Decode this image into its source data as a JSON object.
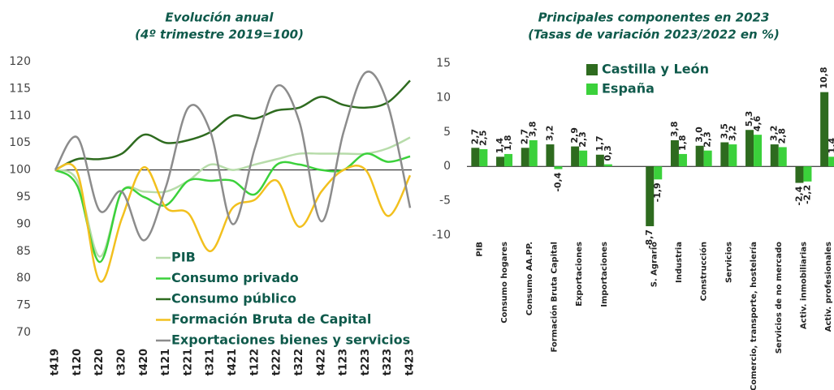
{
  "chart_data": [
    {
      "type": "line",
      "title": "Evolución anual",
      "subtitle": "(4º trimestre 2019=100)",
      "categories": [
        "t419",
        "t120",
        "t220",
        "t320",
        "t420",
        "t121",
        "t221",
        "t321",
        "t421",
        "t122",
        "t222",
        "t322",
        "t422",
        "t123",
        "t223",
        "t323",
        "t423"
      ],
      "series": [
        {
          "name": "PIB",
          "color": "#b7dcaa",
          "values": [
            100,
            98,
            84,
            96,
            96,
            96,
            98,
            101,
            100,
            101,
            102,
            103,
            103,
            103,
            103,
            104,
            106
          ]
        },
        {
          "name": "Consumo privado",
          "color": "#3bd13b",
          "values": [
            100,
            97,
            83,
            96,
            95,
            93.5,
            98,
            98,
            98,
            95.5,
            101,
            101,
            100,
            100,
            103,
            101.5,
            102.5
          ]
        },
        {
          "name": "Consumo público",
          "color": "#2e6b1f",
          "values": [
            100,
            102,
            102,
            103,
            106.5,
            105,
            105.5,
            107,
            110,
            109.5,
            111,
            111.5,
            113.5,
            112,
            111.5,
            112.5,
            116.5
          ]
        },
        {
          "name": "Formación Bruta de Capital",
          "color": "#f2c01e",
          "values": [
            100,
            99.5,
            79.5,
            91,
            100.5,
            93,
            92,
            85,
            93,
            94.5,
            98,
            89.5,
            96,
            100,
            100,
            91.5,
            99
          ]
        },
        {
          "name": "Exportaciones bienes y servicios",
          "color": "#8c8c8c",
          "values": [
            100,
            106,
            92.5,
            96,
            87,
            97,
            111.5,
            107,
            90,
            104,
            115.5,
            109,
            90.5,
            107,
            118,
            112,
            93
          ]
        }
      ],
      "ylim": [
        70,
        120
      ],
      "yticks": [
        70,
        75,
        80,
        85,
        90,
        95,
        100,
        105,
        110,
        115,
        120
      ],
      "baseline": 100,
      "legend": "bottom"
    },
    {
      "type": "bar",
      "title": "Principales componentes en 2023",
      "subtitle": "(Tasas de variación 2023/2022 en %)",
      "categories": [
        "PIB",
        "Consumo hogares",
        "Consumo AA.PP.",
        "Formación Bruta Capital",
        "Exportaciones",
        "Importaciones",
        null,
        "S. Agrario",
        "Industria",
        "Construcción",
        "Servicios",
        "Comercio, transporte, hostelería",
        "Servicios de no mercado",
        "Activ. inmobiliarias",
        "Activ. profesionales"
      ],
      "series": [
        {
          "name": "Castilla y León",
          "color": "#2e6b1f",
          "values": [
            2.7,
            1.4,
            2.7,
            3.2,
            2.9,
            1.7,
            null,
            -8.7,
            3.8,
            3.0,
            3.5,
            5.3,
            3.2,
            -2.4,
            10.8
          ],
          "value_labels": [
            "2,7",
            "1,4",
            "2,7",
            "3,2",
            "2,9",
            "1,7",
            null,
            "-8,7",
            "3,8",
            "3,0",
            "3,5",
            "5,3",
            "3,2",
            "-2,4",
            "10,8"
          ]
        },
        {
          "name": "España",
          "color": "#3bd13b",
          "values": [
            2.5,
            1.8,
            3.8,
            -0.4,
            2.3,
            0.3,
            null,
            -1.9,
            1.8,
            2.3,
            3.2,
            4.6,
            2.8,
            -2.2,
            1.4
          ],
          "value_labels": [
            "2,5",
            "1,8",
            "3,8",
            "-0,4",
            "2,3",
            "0,3",
            null,
            "-1,9",
            "1,8",
            "2,3",
            "3,2",
            "4,6",
            "2,8",
            "-2,2",
            "1,4"
          ]
        }
      ],
      "ylim": [
        -10,
        15
      ],
      "yticks": [
        -10,
        -5,
        0,
        5,
        10,
        15
      ],
      "legend": "upper left"
    }
  ]
}
